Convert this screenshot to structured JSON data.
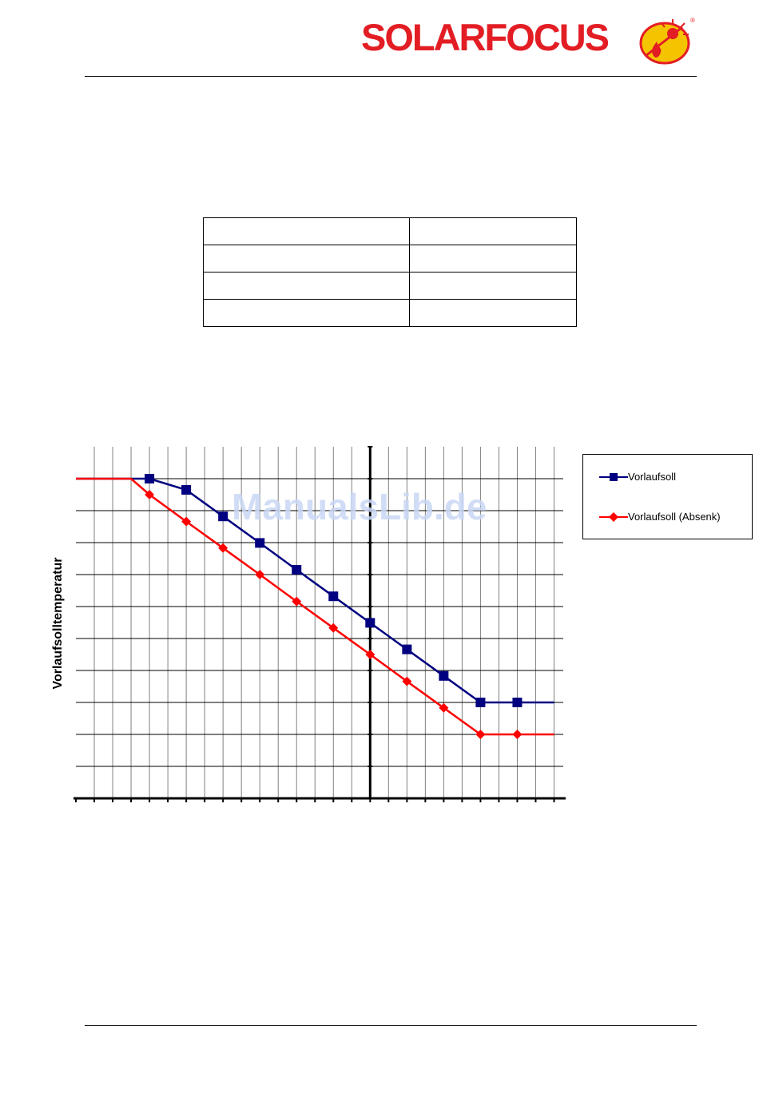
{
  "header": {
    "logo_text": "SOLARFOCUS",
    "logo_colors": {
      "brand_red": "#e31d24",
      "emblem_yellow": "#f5c400"
    }
  },
  "table": {
    "rows": [
      [
        "",
        ""
      ],
      [
        "",
        ""
      ],
      [
        "",
        ""
      ],
      [
        "",
        ""
      ]
    ]
  },
  "watermark": "ManualsLib.de",
  "chart_data": {
    "type": "line",
    "ylabel": "Vorlaufsolltemperatur",
    "xlabel": "",
    "title": "",
    "grid": true,
    "legend_placement": "right",
    "x_ticks": 27,
    "y_ticks": 11,
    "series": [
      {
        "name": "Vorlaufsoll",
        "color": "#000080",
        "marker": "square",
        "x": [
          -16,
          -12,
          -10,
          -8,
          -6,
          -4,
          -2,
          0,
          2,
          4,
          6,
          8,
          10
        ],
        "y": [
          10,
          10,
          9.65,
          8.82,
          7.99,
          7.15,
          6.32,
          5.49,
          4.66,
          3.83,
          3.0,
          3.0,
          3.0
        ]
      },
      {
        "name": "Vorlaufsoll  (Absenk)",
        "color": "#ff0000",
        "marker": "diamond",
        "x": [
          -16,
          -13,
          -12,
          -10,
          -8,
          -6,
          -4,
          -2,
          0,
          2,
          4,
          6,
          8,
          10
        ],
        "y": [
          10,
          10,
          9.5,
          8.66,
          7.83,
          7.0,
          6.16,
          5.33,
          4.5,
          3.66,
          2.83,
          2.0,
          2.0,
          2.0
        ]
      }
    ],
    "markers_at_x": [
      -12,
      -10,
      -8,
      -6,
      -4,
      -2,
      0,
      2,
      4,
      6,
      8
    ]
  }
}
